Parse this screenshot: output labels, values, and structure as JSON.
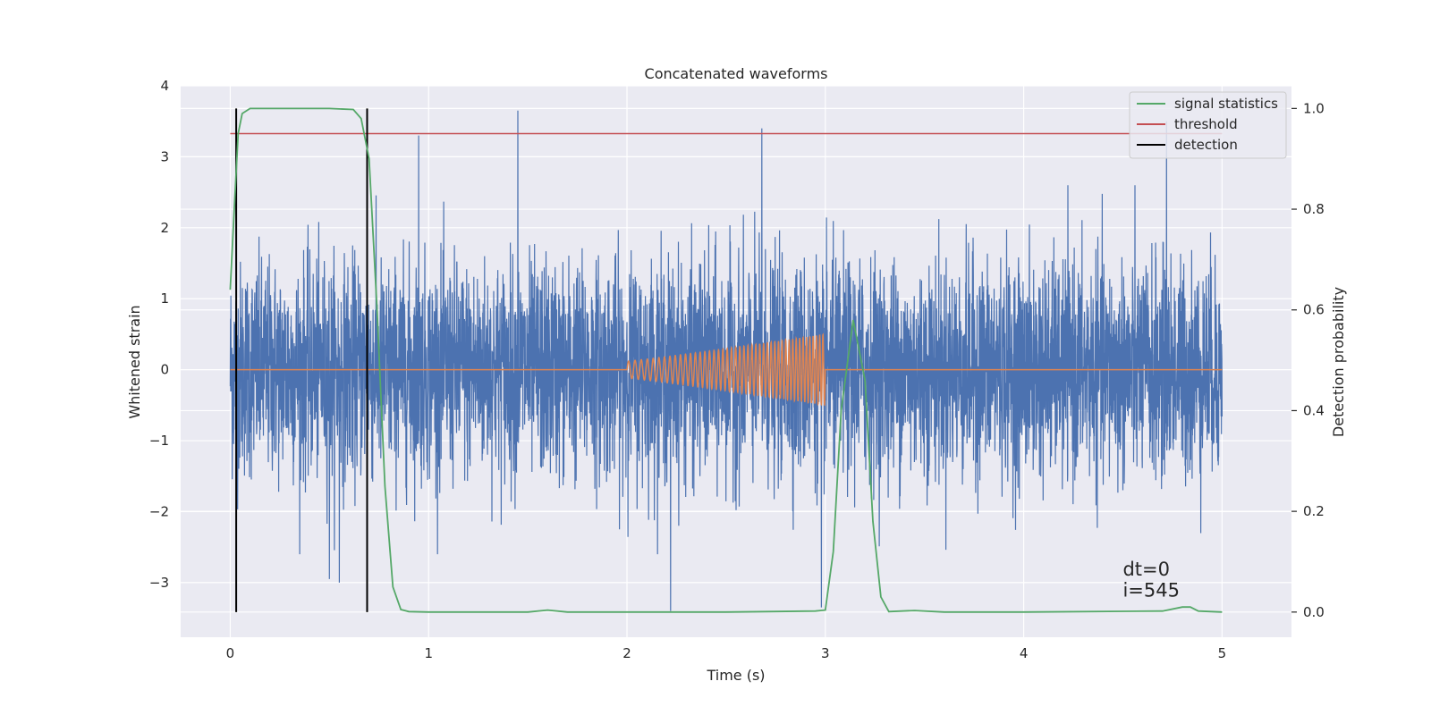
{
  "chart_data": {
    "type": "line",
    "title": "Concatenated waveforms",
    "xlabel": "Time (s)",
    "ylabel": "Whitened strain",
    "y2label": "Detection probability",
    "xlim": [
      -0.25,
      5.35
    ],
    "ylim": [
      -3.77,
      4.0
    ],
    "y2lim": [
      -0.05,
      1.045
    ],
    "xticks": [
      0,
      1,
      2,
      3,
      4,
      5
    ],
    "xtick_labels": [
      "0",
      "1",
      "2",
      "3",
      "4",
      "5"
    ],
    "yticks": [
      -3,
      -2,
      -1,
      0,
      1,
      2,
      3,
      4
    ],
    "ytick_labels": [
      "−3",
      "−2",
      "−1",
      "0",
      "1",
      "2",
      "3",
      "4"
    ],
    "y2ticks": [
      0.0,
      0.2,
      0.4,
      0.6,
      0.8,
      1.0
    ],
    "y2tick_labels": [
      "0.0",
      "0.2",
      "0.4",
      "0.6",
      "0.8",
      "1.0"
    ],
    "grid": true,
    "legend_position": "top-right",
    "legend": [
      {
        "label": "signal statistics",
        "color": "#55a868"
      },
      {
        "label": "threshold",
        "color": "#c44e52"
      },
      {
        "label": "detection",
        "color": "#000000"
      }
    ],
    "series": [
      {
        "kind": "noise",
        "color": "#4c72b0",
        "x_range": [
          0,
          5
        ],
        "typical_peak_amplitude": 2.2,
        "notable_peaks": [
          {
            "x": 0.95,
            "y": 3.3
          },
          {
            "x": 1.45,
            "y": 3.65
          },
          {
            "x": 2.68,
            "y": 3.4
          },
          {
            "x": 4.72,
            "y": 3.5
          },
          {
            "x": 2.22,
            "y": -3.4
          },
          {
            "x": 2.98,
            "y": -3.35
          },
          {
            "x": 0.5,
            "y": -2.95
          },
          {
            "x": 0.55,
            "y": -3.0
          }
        ]
      },
      {
        "kind": "chirp",
        "color": "#dd8452",
        "x_range": [
          0,
          5
        ],
        "chirp_start": 2.0,
        "chirp_end": 3.0,
        "amplitude_start": 0.12,
        "amplitude_end": 0.5,
        "frequency_start": 30,
        "frequency_end": 62
      },
      {
        "name": "signal statistics",
        "axis": "right",
        "color": "#55a868",
        "x": [
          0.0,
          0.02,
          0.04,
          0.06,
          0.1,
          0.3,
          0.5,
          0.62,
          0.66,
          0.7,
          0.74,
          0.78,
          0.82,
          0.86,
          0.9,
          1.0,
          1.5,
          1.6,
          1.7,
          2.0,
          2.5,
          2.95,
          3.0,
          3.04,
          3.08,
          3.14,
          3.2,
          3.24,
          3.28,
          3.32,
          3.45,
          3.6,
          4.0,
          4.7,
          4.8,
          4.84,
          4.88,
          5.0
        ],
        "y": [
          0.64,
          0.8,
          0.95,
          0.99,
          1.0,
          1.0,
          1.0,
          0.998,
          0.98,
          0.9,
          0.6,
          0.25,
          0.05,
          0.005,
          0.001,
          0.0,
          0.0,
          0.004,
          0.0,
          0.0,
          0.0,
          0.002,
          0.004,
          0.12,
          0.4,
          0.58,
          0.46,
          0.18,
          0.03,
          0.001,
          0.003,
          0.0,
          0.0,
          0.002,
          0.01,
          0.01,
          0.002,
          0.0
        ]
      },
      {
        "name": "threshold",
        "axis": "right",
        "color": "#c44e52",
        "x": [
          0,
          5
        ],
        "y": [
          0.95,
          0.95
        ]
      },
      {
        "name": "detection",
        "axis": "right",
        "color": "#000000",
        "kind": "vlines",
        "x": [
          0.03,
          0.69
        ],
        "y_range": [
          0.0,
          1.0
        ]
      }
    ],
    "annotations": [
      {
        "text": "dt=0",
        "x": 4.5,
        "y": -2.9
      },
      {
        "text": "i=545",
        "x": 4.5,
        "y": -3.2
      }
    ]
  }
}
